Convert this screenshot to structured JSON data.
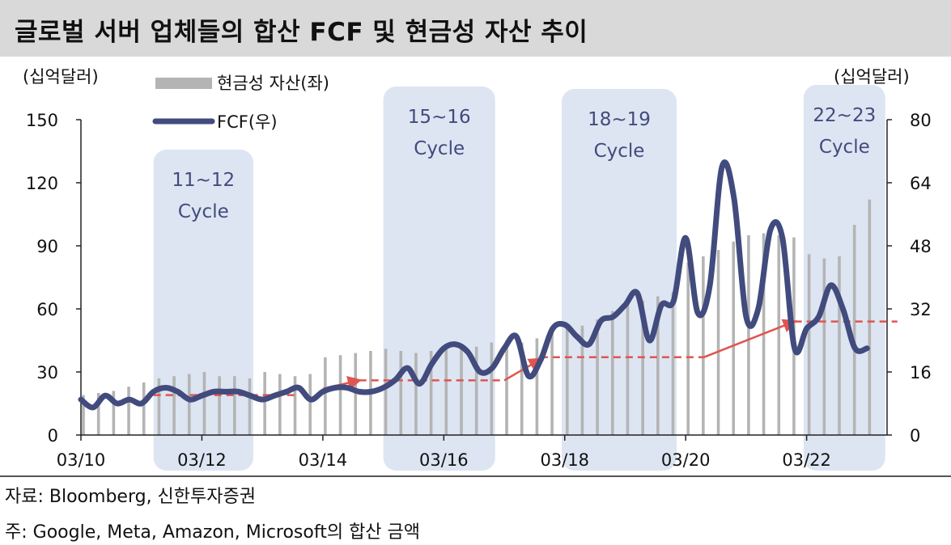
{
  "title": "글로벌 서버 업체들의 합산 FCF 및 현금성 자산 추이",
  "footer": {
    "source": "자료: Bloomberg, 신한투자증권",
    "note": "주: Google, Meta, Amazon, Microsoft의 합산 금액"
  },
  "colors": {
    "bar": "#b4b4b4",
    "line": "#414b7d",
    "cycle_band": "#dde5f2",
    "cycle_text": "#414b7d",
    "trend": "#e05550"
  },
  "chart_data": {
    "type": "bar+line",
    "left_unit": "(십억달러)",
    "right_unit": "(십억달러)",
    "left_axis": {
      "min": 0,
      "max": 150,
      "ticks": [
        0,
        30,
        60,
        90,
        120,
        150
      ]
    },
    "right_axis": {
      "min": 0,
      "max": 80,
      "ticks": [
        0,
        16,
        32,
        48,
        64,
        80
      ]
    },
    "x_tick_labels": [
      "03/10",
      "03/12",
      "03/14",
      "03/16",
      "03/18",
      "03/20",
      "03/22"
    ],
    "legend": [
      {
        "name": "현금성 자산(좌)",
        "kind": "bar"
      },
      {
        "name": "FCF(우)",
        "kind": "line"
      }
    ],
    "cycles": [
      {
        "label": "11~12",
        "sub": "Cycle",
        "from": 2011.2,
        "to": 2012.85
      },
      {
        "label": "15~16",
        "sub": "Cycle",
        "from": 2015.0,
        "to": 2016.85
      },
      {
        "label": "18~19",
        "sub": "Cycle",
        "from": 2017.95,
        "to": 2019.85
      },
      {
        "label": "22~23",
        "sub": "Cycle",
        "from": 2021.95,
        "to": 2023.3
      }
    ],
    "cash_bars": {
      "x": [
        2010.0,
        2010.25,
        2010.5,
        2010.75,
        2011.0,
        2011.25,
        2011.5,
        2011.75,
        2012.0,
        2012.25,
        2012.5,
        2012.75,
        2013.0,
        2013.25,
        2013.5,
        2013.75,
        2014.0,
        2014.25,
        2014.5,
        2014.75,
        2015.0,
        2015.25,
        2015.5,
        2015.75,
        2016.0,
        2016.25,
        2016.5,
        2016.75,
        2017.0,
        2017.25,
        2017.5,
        2017.75,
        2018.0,
        2018.25,
        2018.5,
        2018.75,
        2019.0,
        2019.25,
        2019.5,
        2019.75,
        2020.0,
        2020.25,
        2020.5,
        2020.75,
        2021.0,
        2021.25,
        2021.5,
        2021.75,
        2022.0,
        2022.25,
        2022.5,
        2022.75,
        2023.0
      ],
      "values": [
        19,
        20,
        21,
        23,
        25,
        27,
        28,
        29,
        30,
        28,
        28,
        27,
        30,
        29,
        28,
        29,
        37,
        38,
        39,
        40,
        41,
        40,
        39,
        40,
        42,
        41,
        42,
        44,
        45,
        44,
        46,
        50,
        52,
        52,
        55,
        59,
        62,
        64,
        66,
        68,
        82,
        85,
        88,
        92,
        95,
        96,
        95,
        94,
        86,
        84,
        85,
        100,
        112
      ]
    },
    "fcf_line": {
      "x": [
        2010.0,
        2010.2,
        2010.4,
        2010.6,
        2010.8,
        2011.0,
        2011.2,
        2011.4,
        2011.6,
        2011.8,
        2012.0,
        2012.2,
        2012.4,
        2012.6,
        2012.8,
        2013.0,
        2013.2,
        2013.4,
        2013.6,
        2013.8,
        2014.0,
        2014.2,
        2014.4,
        2014.6,
        2014.8,
        2015.0,
        2015.2,
        2015.4,
        2015.6,
        2015.8,
        2016.0,
        2016.2,
        2016.4,
        2016.6,
        2016.8,
        2017.0,
        2017.2,
        2017.4,
        2017.6,
        2017.8,
        2018.0,
        2018.2,
        2018.4,
        2018.6,
        2018.8,
        2019.0,
        2019.2,
        2019.4,
        2019.6,
        2019.8,
        2020.0,
        2020.2,
        2020.4,
        2020.6,
        2020.8,
        2021.0,
        2021.2,
        2021.4,
        2021.6,
        2021.8,
        2022.0,
        2022.2,
        2022.4,
        2022.6,
        2022.8,
        2023.0
      ],
      "values": [
        9,
        7,
        10,
        8,
        9,
        8,
        11,
        12,
        11,
        9,
        10,
        11,
        11,
        11,
        10,
        9,
        10,
        11,
        12,
        9,
        11,
        12,
        12,
        11,
        11,
        12,
        14,
        17,
        13,
        18,
        22,
        23,
        21,
        16,
        17,
        22,
        25,
        15,
        19,
        27,
        28,
        25,
        23,
        29,
        30,
        33,
        36,
        24,
        33,
        34,
        50,
        31,
        38,
        68,
        60,
        30,
        32,
        52,
        50,
        22,
        27,
        30,
        38,
        32,
        22,
        22
      ]
    },
    "trend_lines": [
      {
        "from": [
          2011.2,
          19
        ],
        "to": [
          2013.6,
          19
        ]
      },
      {
        "from": [
          2014.6,
          26
        ],
        "to": [
          2017.0,
          26
        ]
      },
      {
        "from": [
          2017.6,
          37
        ],
        "to": [
          2020.3,
          37
        ]
      },
      {
        "from": [
          2021.8,
          54
        ],
        "to": [
          2023.5,
          54
        ]
      }
    ],
    "trend_arrows": [
      {
        "from": [
          2014.0,
          22
        ],
        "to": [
          2014.6,
          26
        ]
      },
      {
        "from": [
          2017.0,
          26
        ],
        "to": [
          2017.6,
          36
        ]
      },
      {
        "from": [
          2020.3,
          37
        ],
        "to": [
          2021.8,
          54
        ]
      }
    ]
  }
}
